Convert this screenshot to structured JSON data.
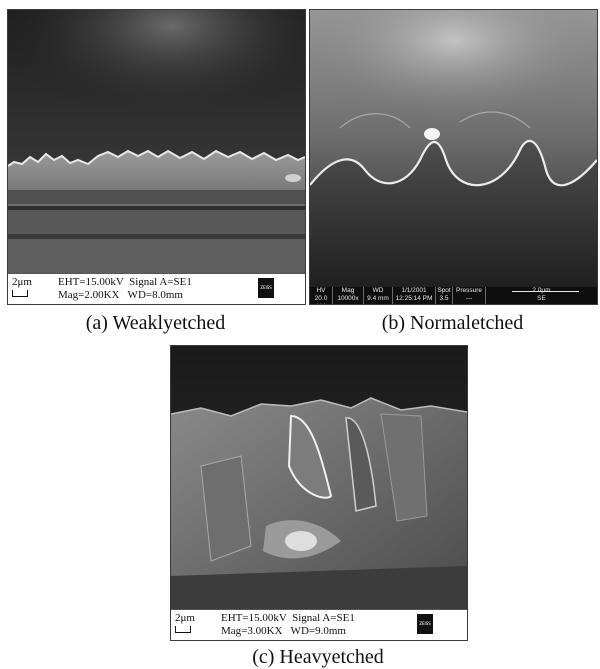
{
  "panels": {
    "a": {
      "caption": "(a) Weaklyetched",
      "scale_label": "2μm",
      "line1": "EHT=15.00kV  Signal A=SE1",
      "line2": "Mag=2.00KX   WD=8.0mm",
      "logo": "ZEISS"
    },
    "b": {
      "caption": "(b) Normaletched",
      "headers": [
        "HV",
        "Mag",
        "WD",
        "1/1/2001",
        "Spot",
        "Pressure"
      ],
      "values": [
        "20.0 kV",
        "10000x",
        "9.4 mm",
        "12:25:14 PM",
        "3.5",
        "---"
      ],
      "scale_label": "2.0μm",
      "detector": "SE"
    },
    "c": {
      "caption": "(c) Heavyetched",
      "scale_label": "2μm",
      "line1": "EHT=15.00kV  Signal A=SE1",
      "line2": "Mag=3.00KX   WD=9.0mm",
      "logo": "ZEISS"
    }
  }
}
